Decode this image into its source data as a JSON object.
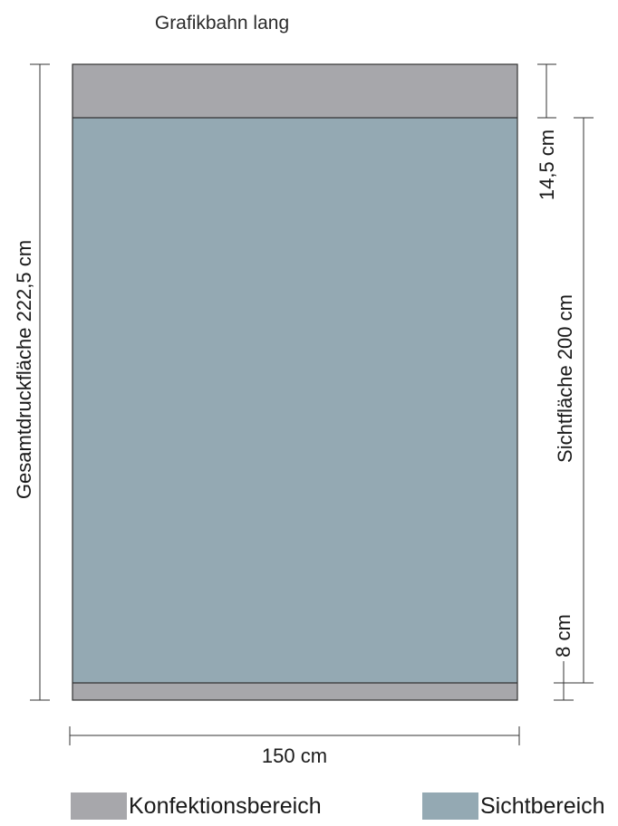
{
  "title": "Grafikbahn lang",
  "dimensions": {
    "total": "Gesamtdruckfläche 222,5 cm",
    "top_margin": "14,5 cm",
    "visible": "Sichtfläche 200 cm",
    "bottom_margin": "8 cm",
    "width": "150 cm"
  },
  "legend": {
    "konfektion": "Konfektionsbereich",
    "sicht": "Sichtbereich"
  },
  "colors": {
    "konfektion": "#a7a7ab",
    "sicht": "#94a9b3",
    "line": "#333333"
  }
}
